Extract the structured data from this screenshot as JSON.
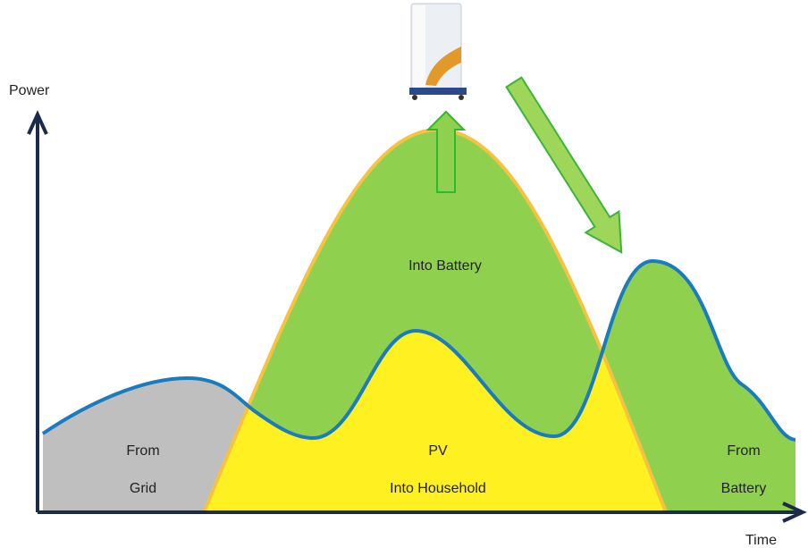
{
  "axes": {
    "y_label": "Power",
    "x_label": "Time"
  },
  "regions": [
    {
      "lines": [
        "From",
        "Grid"
      ]
    },
    {
      "lines": [
        "Into Battery"
      ]
    },
    {
      "lines": [
        "PV",
        "Into Household"
      ]
    },
    {
      "lines": [
        "From",
        "Battery"
      ]
    }
  ]
}
